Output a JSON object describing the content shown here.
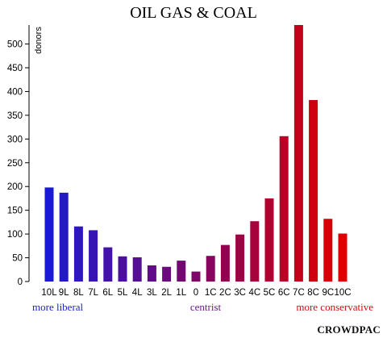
{
  "chart_data": {
    "type": "bar",
    "title": "OIL GAS & COAL",
    "ylabel": "donors",
    "ylim": [
      0,
      540
    ],
    "yticks": [
      0,
      50,
      100,
      150,
      200,
      250,
      300,
      350,
      400,
      450,
      500
    ],
    "categories": [
      "10L",
      "9L",
      "8L",
      "7L",
      "6L",
      "5L",
      "4L",
      "3L",
      "2L",
      "1L",
      "0",
      "1C",
      "2C",
      "3C",
      "4C",
      "5C",
      "6C",
      "7C",
      "8C",
      "9C",
      "10C"
    ],
    "values": [
      198,
      187,
      116,
      108,
      72,
      53,
      51,
      34,
      31,
      44,
      21,
      54,
      77,
      99,
      127,
      175,
      306,
      540,
      382,
      132,
      101
    ],
    "colors": [
      "#1a1ad6",
      "#2418cb",
      "#2e16c0",
      "#3814b5",
      "#4212aa",
      "#4c109f",
      "#560e94",
      "#600c89",
      "#6a0a7e",
      "#740873",
      "#7e0668",
      "#88055d",
      "#920452",
      "#9c0347",
      "#a6023c",
      "#b00131",
      "#ba0126",
      "#c4001b",
      "#ce0010",
      "#d80008",
      "#e00000"
    ],
    "grid": false,
    "legend": "none",
    "captions": {
      "left": "more liberal",
      "center": "centrist",
      "right": "more conservative"
    },
    "caption_colors": {
      "left": "#2020cc",
      "center": "#6a1b8a",
      "right": "#cc1010"
    }
  },
  "brand": "CROWDPAC"
}
